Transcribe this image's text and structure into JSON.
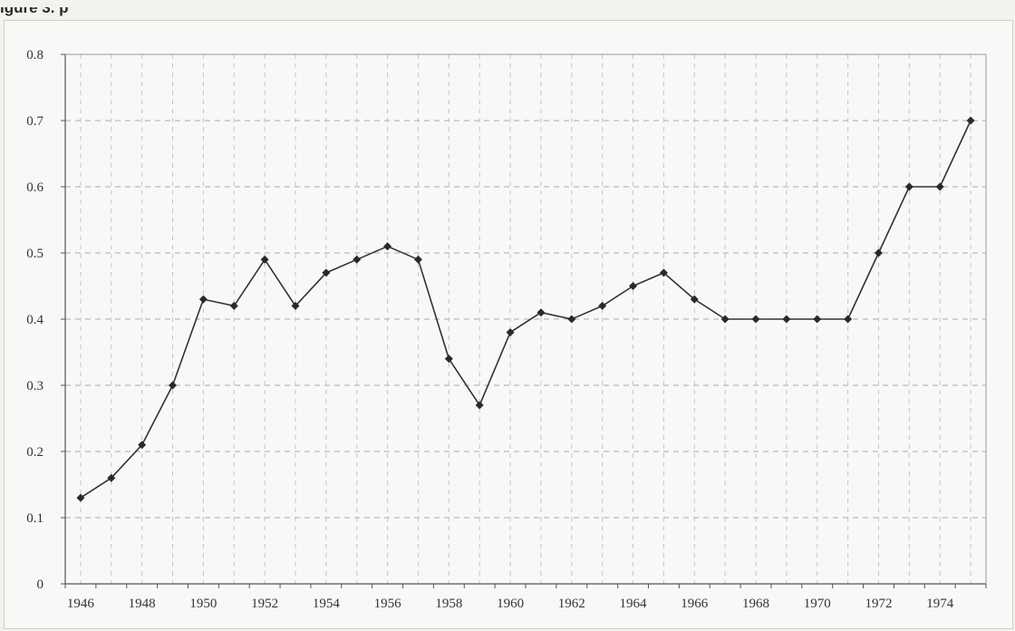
{
  "header": {
    "title": "igure 3. p"
  },
  "chart_data": {
    "type": "line",
    "title": "",
    "xlabel": "",
    "ylabel": "",
    "x": [
      1946,
      1947,
      1948,
      1949,
      1950,
      1951,
      1952,
      1953,
      1954,
      1955,
      1956,
      1957,
      1958,
      1959,
      1960,
      1961,
      1962,
      1963,
      1964,
      1965,
      1966,
      1967,
      1968,
      1969,
      1970,
      1971,
      1972,
      1973,
      1974,
      1975
    ],
    "series": [
      {
        "values": [
          0.13,
          0.16,
          0.21,
          0.3,
          0.43,
          0.42,
          0.49,
          0.42,
          0.47,
          0.49,
          0.51,
          0.49,
          0.34,
          0.27,
          0.38,
          0.41,
          0.4,
          0.42,
          0.45,
          0.47,
          0.43,
          0.4,
          0.4,
          0.4,
          0.4,
          0.4,
          0.5,
          0.6,
          0.6,
          0.7
        ]
      }
    ],
    "x_ticks": [
      "1946",
      "1948",
      "1950",
      "1952",
      "1954",
      "1956",
      "1958",
      "1960",
      "1962",
      "1964",
      "1966",
      "1968",
      "1970",
      "1972",
      "1974"
    ],
    "y_ticks": [
      "0",
      "0.1",
      "0.2",
      "0.3",
      "0.4",
      "0.5",
      "0.6",
      "0.7",
      "0.8"
    ],
    "ylim": [
      0,
      0.8
    ],
    "xlim": [
      1945.5,
      1975.5
    ],
    "grid": true,
    "line_color": "#333333",
    "marker": "diamond"
  }
}
